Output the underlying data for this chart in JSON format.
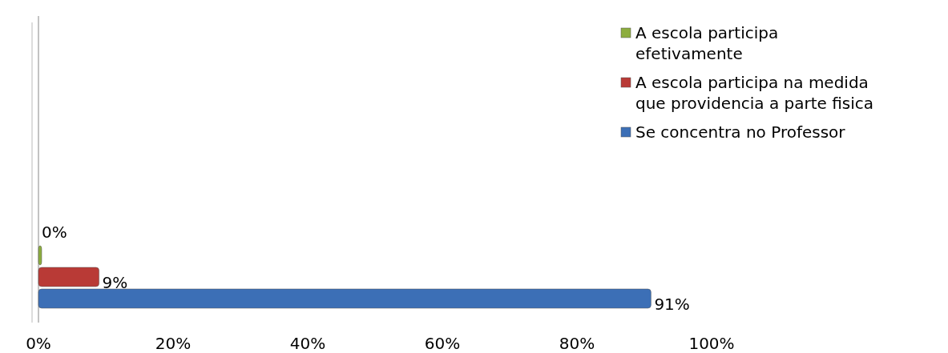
{
  "chart_data": {
    "type": "bar",
    "orientation": "horizontal",
    "categories": [
      null
    ],
    "series": [
      {
        "name": "Se concentra no Professor",
        "color": "#3c6fb6",
        "values": [
          91
        ]
      },
      {
        "name": "A escola participa na medida que providencia a parte fisica",
        "color": "#b93a36",
        "values": [
          9
        ]
      },
      {
        "name": "A escola participa efetivamente",
        "color": "#8cad3e",
        "values": [
          0
        ]
      }
    ],
    "xlim": [
      0,
      100
    ],
    "xticks": [
      {
        "value": 0,
        "label": "0%"
      },
      {
        "value": 20,
        "label": "20%"
      },
      {
        "value": 40,
        "label": "40%"
      },
      {
        "value": 60,
        "label": "60%"
      },
      {
        "value": 80,
        "label": "80%"
      },
      {
        "value": 100,
        "label": "100%"
      }
    ],
    "value_labels": [
      "91%",
      "9%",
      "0%"
    ],
    "legend": "right",
    "grid": false
  }
}
